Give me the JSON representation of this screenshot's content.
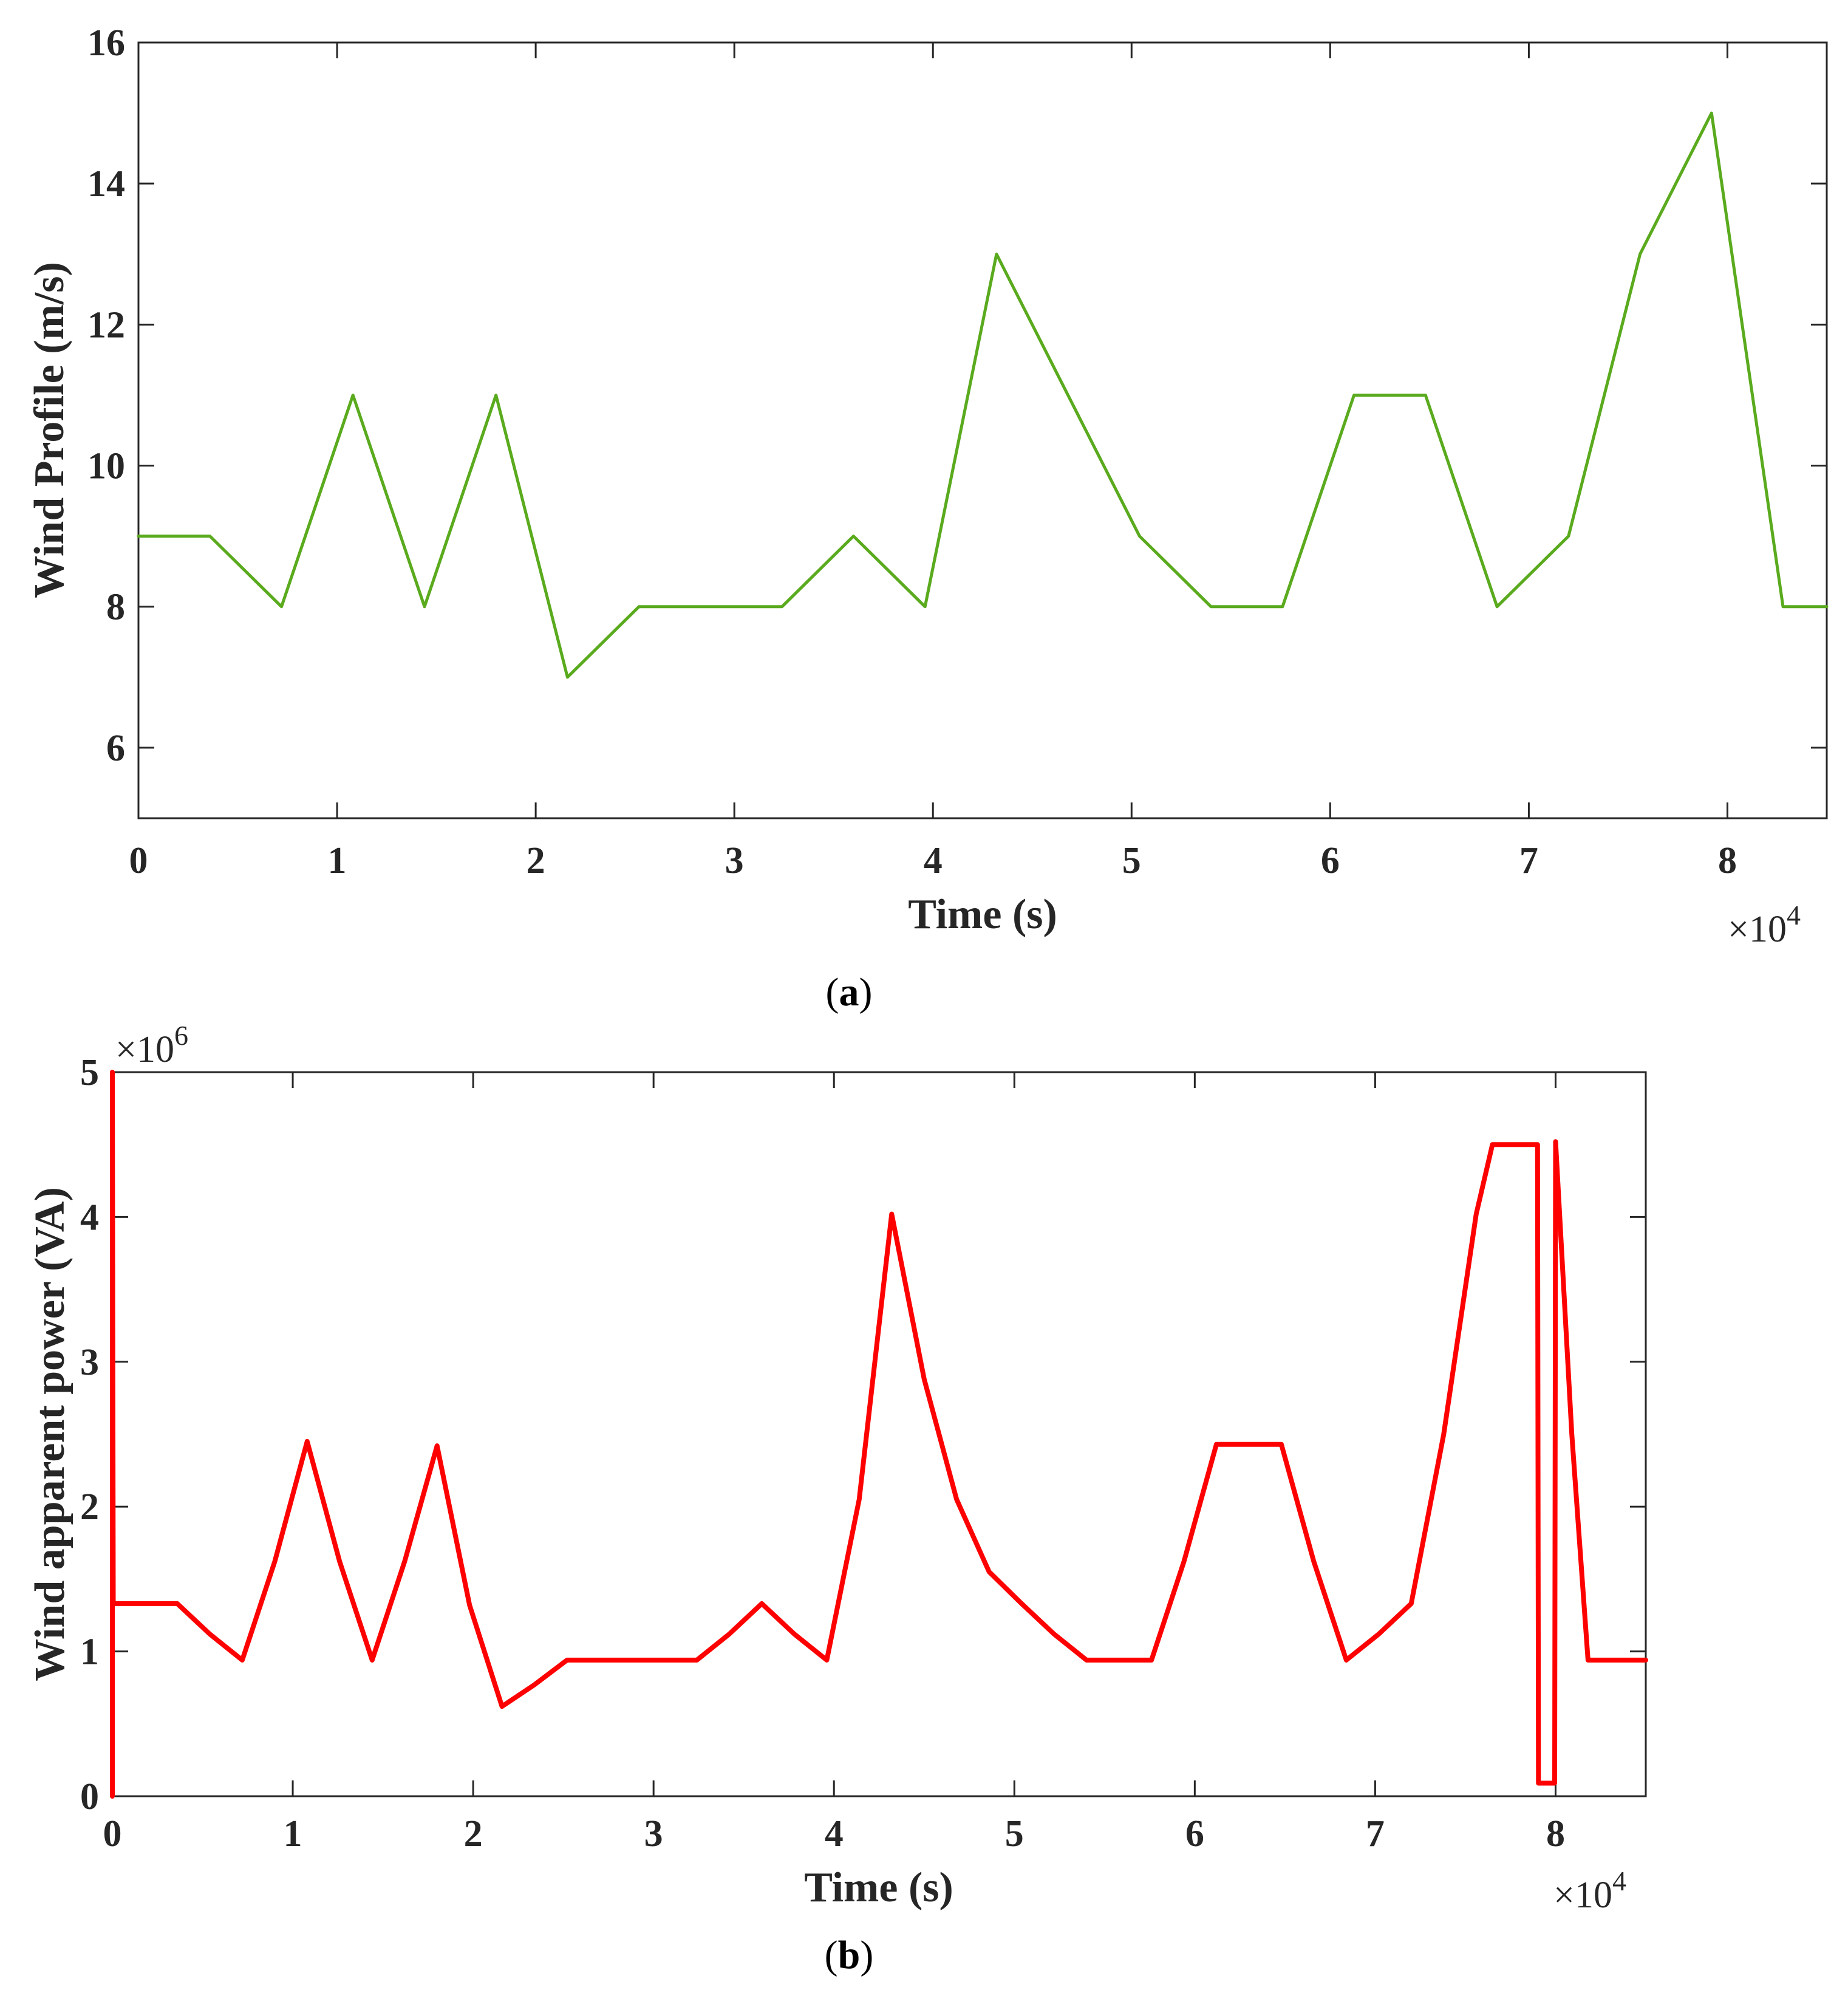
{
  "chart_data": [
    {
      "type": "line",
      "panel_label": "a",
      "title": "",
      "xlabel": "Time (s)",
      "ylabel": "Wind Profile (m/s)",
      "x_exponent_label": "×10",
      "x_exponent_power": "4",
      "y_exponent_label": "",
      "y_exponent_power": "",
      "xlim": [
        0,
        8.5
      ],
      "ylim": [
        5,
        16
      ],
      "x_ticks": [
        0,
        1,
        2,
        3,
        4,
        5,
        6,
        7,
        8
      ],
      "x_tick_labels": [
        "0",
        "1",
        "2",
        "3",
        "4",
        "5",
        "6",
        "7",
        "8"
      ],
      "y_ticks": [
        6,
        8,
        10,
        12,
        14,
        16
      ],
      "y_tick_labels": [
        "6",
        "8",
        "10",
        "12",
        "14",
        "16"
      ],
      "grid": false,
      "series": [
        {
          "name": "Wind Profile",
          "color": "#5aaa1e",
          "x": [
            0,
            0.36,
            0.72,
            1.08,
            1.44,
            1.8,
            2.16,
            2.52,
            2.88,
            3.24,
            3.6,
            3.96,
            4.32,
            4.68,
            5.04,
            5.4,
            5.76,
            6.12,
            6.48,
            6.84,
            7.2,
            7.56,
            7.92,
            8.28,
            8.5
          ],
          "y": [
            9,
            9,
            8,
            11,
            8,
            11,
            7,
            8,
            8,
            8,
            9,
            8,
            13,
            11,
            9,
            8,
            8,
            11,
            11,
            8,
            9,
            13,
            15,
            8,
            8
          ]
        }
      ]
    },
    {
      "type": "line",
      "panel_label": "b",
      "title": "",
      "xlabel": "Time (s)",
      "ylabel": "Wind apparent power (VA)",
      "x_exponent_label": "×10",
      "x_exponent_power": "4",
      "y_exponent_label": "×10",
      "y_exponent_power": "6",
      "xlim": [
        0,
        8.5
      ],
      "ylim": [
        0,
        5
      ],
      "x_ticks": [
        0,
        1,
        2,
        3,
        4,
        5,
        6,
        7,
        8
      ],
      "x_tick_labels": [
        "0",
        "1",
        "2",
        "3",
        "4",
        "5",
        "6",
        "7",
        "8"
      ],
      "y_ticks": [
        0,
        1,
        2,
        3,
        4,
        5
      ],
      "y_tick_labels": [
        "0",
        "1",
        "2",
        "3",
        "4",
        "5"
      ],
      "grid": false,
      "series": [
        {
          "name": "Wind apparent power",
          "color": "#ff0000",
          "x": [
            0,
            0,
            0.005,
            0.36,
            0.54,
            0.72,
            0.9,
            1.08,
            1.26,
            1.44,
            1.62,
            1.8,
            1.98,
            2.16,
            2.34,
            2.52,
            2.7,
            2.88,
            3.06,
            3.24,
            3.42,
            3.6,
            3.78,
            3.96,
            4.14,
            4.32,
            4.5,
            4.68,
            4.86,
            5.04,
            5.22,
            5.4,
            5.58,
            5.76,
            5.94,
            6.12,
            6.3,
            6.48,
            6.66,
            6.84,
            7.02,
            7.2,
            7.38,
            7.56,
            7.65,
            7.74,
            7.83,
            7.9,
            7.905,
            7.995,
            8.0,
            8.09,
            8.18,
            8.28,
            8.5
          ],
          "y": [
            0,
            5,
            1.33,
            1.33,
            1.12,
            0.94,
            1.62,
            2.45,
            1.62,
            0.94,
            1.62,
            2.42,
            1.32,
            0.62,
            0.77,
            0.94,
            0.94,
            0.94,
            0.94,
            0.94,
            1.12,
            1.33,
            1.12,
            0.94,
            2.05,
            4.02,
            2.88,
            2.05,
            1.55,
            1.33,
            1.12,
            0.94,
            0.94,
            0.94,
            1.62,
            2.43,
            2.43,
            2.43,
            1.62,
            0.94,
            1.12,
            1.33,
            2.5,
            4.02,
            4.5,
            4.5,
            4.5,
            4.5,
            0.09,
            0.09,
            4.52,
            2.5,
            0.94,
            0.94,
            0.94
          ]
        }
      ]
    }
  ]
}
